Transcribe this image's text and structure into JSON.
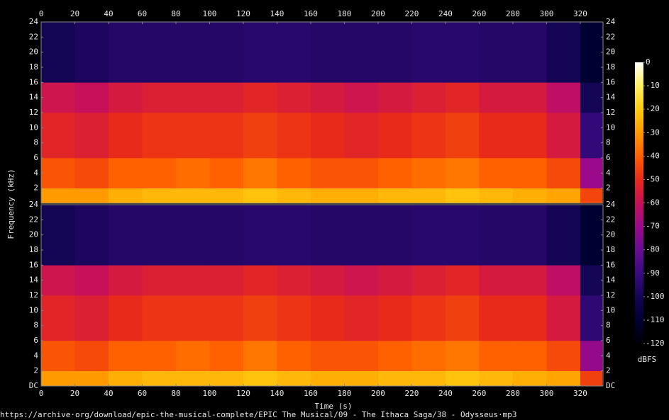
{
  "chart_data": {
    "type": "spectrogram",
    "xlabel": "Time (s)",
    "ylabel": "Frequency (kHz)",
    "colorbar_label": "dBFS",
    "footer": "https://archive·org/download/epic-the-musical-complete/EPIC The Musical/09 - The Ithaca Saga/38 - Odysseus·mp3",
    "xlim": [
      0,
      333.5
    ],
    "xticks": [
      0,
      20,
      40,
      60,
      80,
      100,
      120,
      140,
      160,
      180,
      200,
      220,
      240,
      260,
      280,
      300,
      320
    ],
    "time_bins": [
      0,
      20,
      40,
      60,
      80,
      100,
      120,
      140,
      160,
      180,
      200,
      220,
      240,
      260,
      280,
      300,
      320,
      333
    ],
    "freq_bins": [
      0,
      2,
      6,
      12,
      16,
      24
    ],
    "clim": [
      -120,
      0
    ],
    "cticks": [
      0,
      -10,
      -20,
      -30,
      -40,
      -50,
      -60,
      -70,
      -80,
      -90,
      -100,
      -110,
      -120
    ],
    "colormap": [
      "#ffffff",
      "#fff060",
      "#ffcc10",
      "#ff9a00",
      "#ff6000",
      "#e82a1a",
      "#c8105a",
      "#9a0a8a",
      "#6a0c95",
      "#3a0a82",
      "#150555",
      "#000033",
      "#000008"
    ],
    "channels": [
      {
        "ylim": [
          0,
          24
        ],
        "yticks": [
          2,
          4,
          6,
          8,
          10,
          12,
          14,
          16,
          18,
          20,
          22,
          24
        ],
        "values": [
          [
            -30,
            -30,
            -26,
            -24,
            -24,
            -24,
            -22,
            -24,
            -26,
            -26,
            -24,
            -24,
            -22,
            -24,
            -26,
            -28,
            -45
          ],
          [
            -42,
            -44,
            -40,
            -40,
            -38,
            -40,
            -36,
            -40,
            -42,
            -42,
            -40,
            -38,
            -36,
            -40,
            -40,
            -44,
            -70
          ],
          [
            -52,
            -54,
            -50,
            -48,
            -48,
            -48,
            -46,
            -48,
            -50,
            -52,
            -50,
            -48,
            -46,
            -50,
            -50,
            -56,
            -92
          ],
          [
            -58,
            -60,
            -56,
            -54,
            -54,
            -54,
            -52,
            -54,
            -56,
            -58,
            -56,
            -54,
            -52,
            -56,
            -56,
            -62,
            -100
          ],
          [
            -100,
            -98,
            -96,
            -96,
            -96,
            -96,
            -95,
            -95,
            -96,
            -96,
            -96,
            -95,
            -95,
            -96,
            -96,
            -100,
            -110
          ]
        ]
      },
      {
        "ylim": [
          0,
          24
        ],
        "yticks": [
          {
            "value": 0,
            "label": "DC"
          },
          2,
          4,
          6,
          8,
          10,
          12,
          14,
          16,
          18,
          20,
          22,
          24
        ],
        "values": [
          [
            -30,
            -30,
            -26,
            -24,
            -24,
            -24,
            -22,
            -24,
            -26,
            -26,
            -24,
            -24,
            -22,
            -24,
            -26,
            -28,
            -46
          ],
          [
            -42,
            -44,
            -40,
            -40,
            -38,
            -40,
            -36,
            -40,
            -42,
            -42,
            -40,
            -38,
            -36,
            -40,
            -40,
            -44,
            -71
          ],
          [
            -52,
            -54,
            -50,
            -48,
            -48,
            -48,
            -46,
            -48,
            -50,
            -52,
            -50,
            -48,
            -46,
            -50,
            -50,
            -56,
            -93
          ],
          [
            -58,
            -60,
            -56,
            -54,
            -54,
            -54,
            -52,
            -54,
            -56,
            -58,
            -56,
            -54,
            -52,
            -56,
            -56,
            -62,
            -100
          ],
          [
            -100,
            -98,
            -96,
            -96,
            -96,
            -96,
            -95,
            -95,
            -96,
            -96,
            -96,
            -95,
            -95,
            -96,
            -96,
            -100,
            -110
          ]
        ]
      }
    ]
  }
}
